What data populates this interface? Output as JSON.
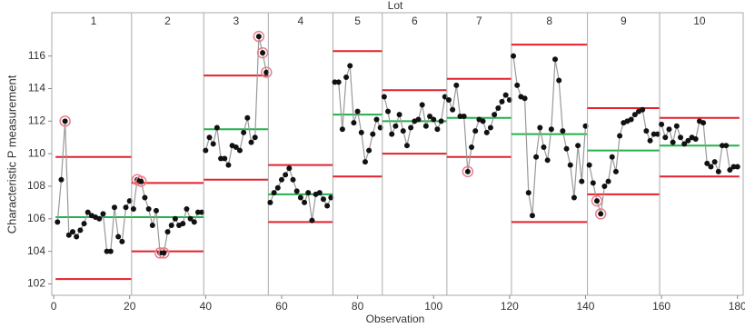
{
  "chart_data": {
    "type": "control",
    "title": "Lot",
    "x_label": "Observation",
    "y_label": "Characteristic P measurement",
    "xlim": [
      -0.5,
      181.5
    ],
    "xticks": [
      0,
      20,
      40,
      60,
      80,
      100,
      120,
      140,
      160,
      180
    ],
    "ylim": [
      101.3,
      117.6
    ],
    "yticks": [
      102,
      104,
      106,
      108,
      110,
      112,
      114,
      116
    ],
    "point_color": "#111111",
    "line_color": "#999999",
    "center_color": "#22b14c",
    "limit_color": "#e3202c",
    "flag_color": "#e8808a",
    "lots": [
      {
        "name": "1",
        "center": 106.1,
        "ucl": 109.8,
        "lcl": 102.3,
        "values": [
          105.8,
          108.4,
          112.0,
          105.0,
          105.2,
          104.9,
          105.3,
          105.7,
          106.4,
          106.2,
          106.1,
          106.0,
          106.3,
          104.0,
          104.0,
          106.7,
          104.9,
          104.6,
          106.7,
          107.1
        ]
      },
      {
        "name": "2",
        "center": 106.1,
        "ucl": 108.2,
        "lcl": 104.0,
        "values": [
          106.6,
          108.4,
          108.3,
          107.3,
          106.6,
          105.6,
          106.5,
          103.9,
          103.9,
          105.2,
          105.6,
          106.0,
          105.6,
          105.7,
          106.6,
          106.0,
          105.8,
          106.4,
          106.4
        ]
      },
      {
        "name": "3",
        "center": 111.5,
        "ucl": 114.8,
        "lcl": 108.4,
        "values": [
          110.2,
          111.0,
          110.6,
          111.6,
          109.7,
          109.7,
          109.3,
          110.5,
          110.4,
          110.2,
          111.3,
          112.2,
          110.7,
          111.0,
          117.2,
          116.2,
          115.0
        ]
      },
      {
        "name": "4",
        "center": 107.5,
        "ucl": 109.3,
        "lcl": 105.8,
        "values": [
          107.0,
          107.6,
          107.9,
          108.4,
          108.7,
          109.1,
          108.4,
          107.7,
          107.3,
          107.0,
          107.6,
          105.9,
          107.5,
          107.6,
          107.2,
          106.8,
          107.3
        ]
      },
      {
        "name": "5",
        "center": 112.4,
        "ucl": 116.3,
        "lcl": 108.6,
        "values": [
          114.4,
          114.4,
          111.5,
          114.7,
          115.4,
          111.9,
          112.6,
          111.3,
          109.5,
          110.2,
          111.2,
          112.1,
          111.6
        ]
      },
      {
        "name": "6",
        "center": 112.0,
        "ucl": 113.9,
        "lcl": 110.0,
        "values": [
          113.5,
          112.6,
          111.2,
          111.7,
          112.4,
          111.4,
          110.5,
          111.6,
          112.0,
          112.1,
          113.0,
          111.7,
          112.3,
          112.1,
          111.5,
          112.0,
          113.5
        ]
      },
      {
        "name": "7",
        "center": 112.2,
        "ucl": 114.6,
        "lcl": 109.8,
        "values": [
          113.3,
          112.7,
          114.2,
          112.3,
          112.3,
          108.9,
          110.4,
          111.4,
          112.1,
          112.0,
          111.3,
          111.6,
          112.4,
          112.8,
          113.2,
          113.6,
          113.3
        ]
      },
      {
        "name": "8",
        "center": 111.2,
        "ucl": 116.7,
        "lcl": 105.8,
        "values": [
          116.0,
          114.2,
          113.5,
          113.4,
          107.6,
          106.2,
          109.8,
          111.6,
          110.4,
          109.6,
          111.5,
          115.8,
          114.5,
          111.4,
          110.3,
          109.3,
          107.3,
          110.5,
          108.3,
          111.7
        ]
      },
      {
        "name": "9",
        "center": 110.2,
        "ucl": 112.8,
        "lcl": 107.5,
        "values": [
          109.3,
          108.2,
          107.1,
          106.3,
          108.0,
          108.3,
          109.8,
          108.9,
          111.1,
          111.9,
          112.0,
          112.1,
          112.4,
          112.6,
          112.7,
          111.4,
          110.8,
          111.2,
          111.2
        ]
      },
      {
        "name": "10",
        "center": 110.5,
        "ucl": 112.2,
        "lcl": 108.6,
        "values": [
          111.8,
          111.0,
          111.5,
          110.7,
          111.7,
          111.0,
          110.6,
          110.8,
          111.0,
          110.9,
          112.0,
          111.9,
          109.4,
          109.2,
          109.5,
          108.9,
          110.5,
          110.5,
          109.0,
          109.2,
          109.2
        ]
      }
    ]
  }
}
